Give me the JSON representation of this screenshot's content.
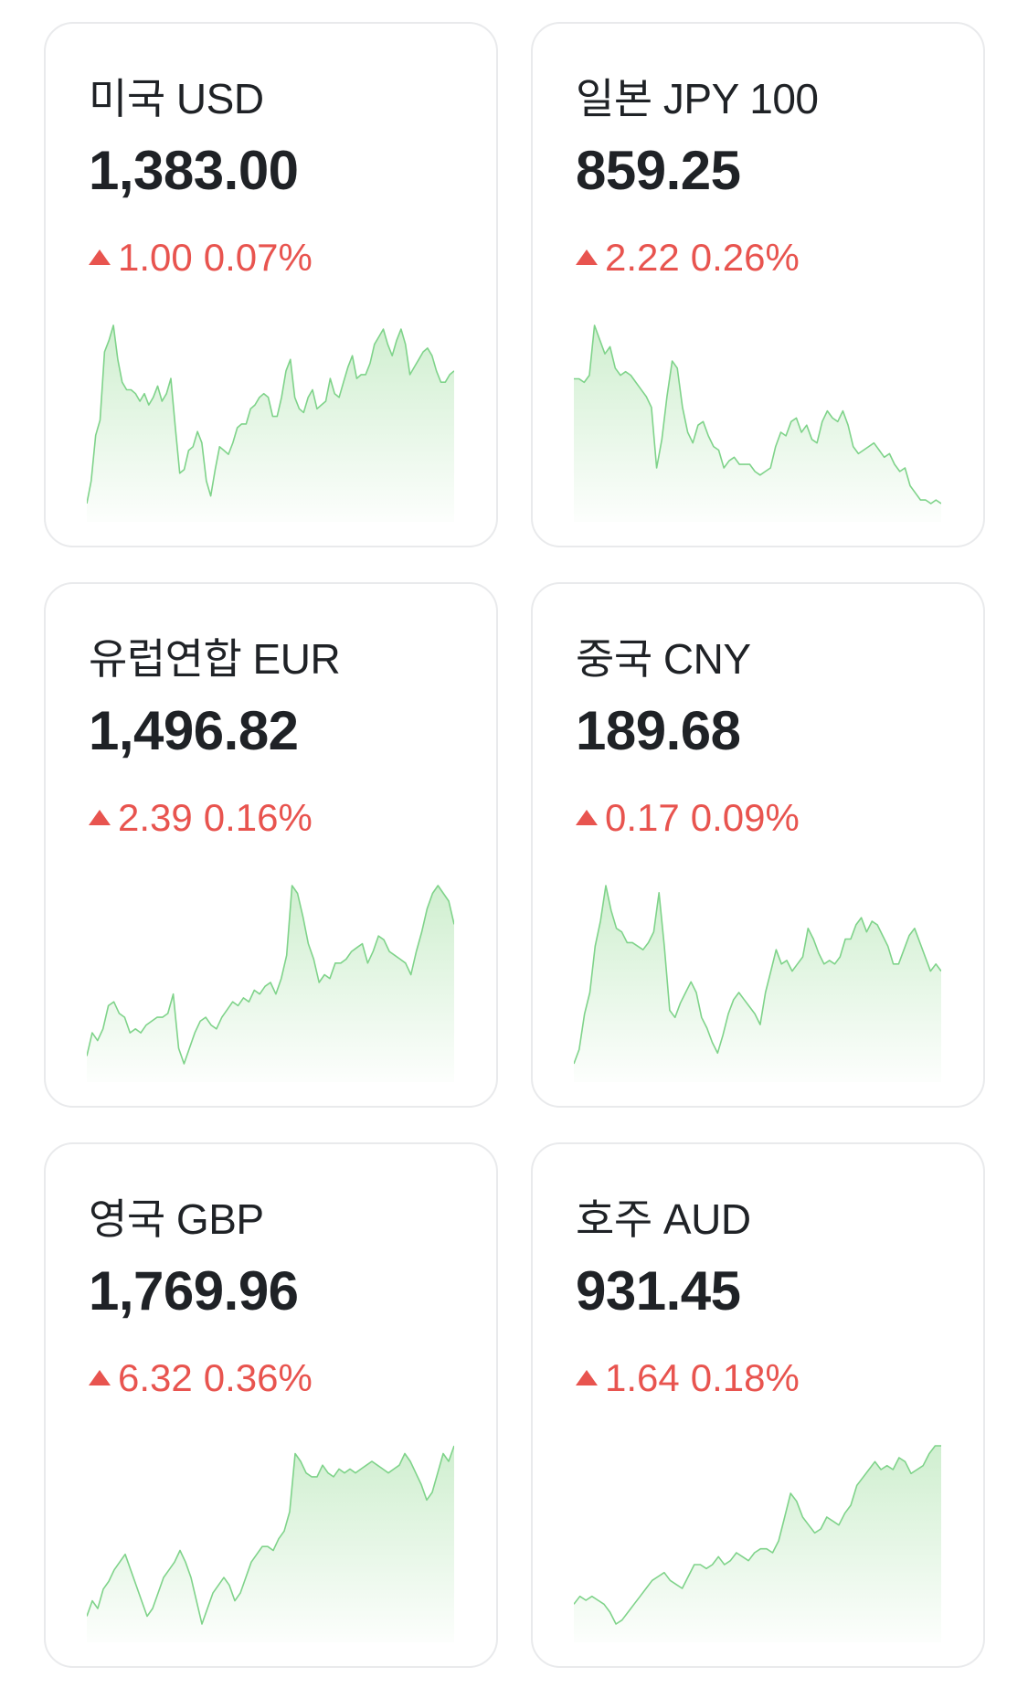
{
  "theme": {
    "rise_color": "#e8544f",
    "spark_line_color": "#7fd38a",
    "spark_fill_color": "#cdeecd"
  },
  "cards": [
    {
      "name": "미국 USD",
      "rate": "1,383.00",
      "change_amount": "1.00",
      "change_percent": "0.07%",
      "direction": "up",
      "spark": [
        58,
        52,
        40,
        36,
        18,
        15,
        11,
        20,
        26,
        28,
        28,
        29,
        31,
        29,
        32,
        30,
        27,
        31,
        29,
        25,
        38,
        50,
        49,
        44,
        43,
        39,
        42,
        52,
        56,
        49,
        43,
        44,
        45,
        42,
        38,
        37,
        37,
        33,
        32,
        30,
        29,
        30,
        35,
        35,
        30,
        23,
        20,
        30,
        33,
        34,
        30,
        28,
        33,
        32,
        31,
        25,
        29,
        30,
        26,
        22,
        19,
        25,
        24,
        24,
        21,
        16,
        14,
        12,
        16,
        19,
        15,
        12,
        16,
        24,
        22,
        20,
        18,
        17,
        19,
        23,
        26,
        26,
        24,
        23
      ]
    },
    {
      "name": "일본 JPY 100",
      "rate": "859.25",
      "change_amount": "2.22",
      "change_percent": "0.26%",
      "direction": "up",
      "spark": [
        25,
        25,
        26,
        24,
        10,
        14,
        18,
        16,
        22,
        24,
        23,
        24,
        26,
        28,
        30,
        33,
        50,
        42,
        30,
        20,
        22,
        33,
        40,
        43,
        38,
        37,
        41,
        44,
        45,
        50,
        48,
        47,
        49,
        49,
        49,
        51,
        52,
        51,
        50,
        44,
        40,
        41,
        37,
        36,
        40,
        38,
        42,
        43,
        37,
        34,
        36,
        37,
        34,
        38,
        44,
        46,
        45,
        44,
        43,
        45,
        47,
        46,
        49,
        51,
        50,
        55,
        57,
        59,
        59,
        60,
        59,
        60
      ]
    },
    {
      "name": "유럽연합 EUR",
      "rate": "1,496.82",
      "change_amount": "2.39",
      "change_percent": "0.16%",
      "direction": "up",
      "spark": [
        54,
        48,
        50,
        47,
        41,
        40,
        43,
        44,
        48,
        47,
        48,
        46,
        45,
        44,
        44,
        43,
        38,
        52,
        56,
        52,
        48,
        45,
        44,
        46,
        47,
        44,
        42,
        40,
        41,
        39,
        40,
        37,
        38,
        36,
        35,
        38,
        34,
        28,
        10,
        12,
        18,
        25,
        29,
        35,
        33,
        34,
        30,
        30,
        29,
        27,
        26,
        25,
        30,
        27,
        23,
        24,
        27,
        28,
        29,
        30,
        33,
        27,
        22,
        16,
        12,
        10,
        12,
        14,
        20
      ]
    },
    {
      "name": "중국 CNY",
      "rate": "189.68",
      "change_amount": "0.17",
      "change_percent": "0.09%",
      "direction": "up",
      "spark": [
        58,
        54,
        44,
        38,
        25,
        18,
        8,
        15,
        20,
        21,
        24,
        24,
        25,
        26,
        24,
        21,
        10,
        25,
        43,
        45,
        41,
        38,
        35,
        38,
        45,
        48,
        52,
        55,
        50,
        44,
        40,
        38,
        40,
        42,
        44,
        47,
        38,
        32,
        26,
        30,
        29,
        32,
        30,
        28,
        20,
        23,
        27,
        30,
        29,
        30,
        28,
        23,
        23,
        19,
        17,
        21,
        18,
        19,
        22,
        25,
        30,
        30,
        26,
        22,
        20,
        24,
        28,
        32,
        30,
        32
      ]
    },
    {
      "name": "영국 GBP",
      "rate": "1,769.96",
      "change_amount": "6.32",
      "change_percent": "0.36%",
      "direction": "up",
      "spark": [
        52,
        48,
        50,
        45,
        43,
        40,
        38,
        36,
        40,
        44,
        48,
        52,
        50,
        46,
        42,
        40,
        38,
        35,
        38,
        42,
        48,
        54,
        50,
        46,
        44,
        42,
        44,
        48,
        46,
        42,
        38,
        36,
        34,
        34,
        35,
        32,
        30,
        25,
        10,
        12,
        15,
        16,
        16,
        13,
        15,
        16,
        14,
        15,
        14,
        15,
        14,
        13,
        12,
        13,
        14,
        15,
        14,
        13,
        10,
        12,
        15,
        18,
        22,
        20,
        15,
        10,
        12,
        8
      ]
    },
    {
      "name": "호주 AUD",
      "rate": "931.45",
      "change_amount": "1.64",
      "change_percent": "0.18%",
      "direction": "up",
      "spark": [
        50,
        48,
        49,
        48,
        49,
        50,
        52,
        55,
        54,
        52,
        50,
        48,
        46,
        44,
        43,
        42,
        44,
        45,
        46,
        43,
        40,
        40,
        41,
        40,
        38,
        40,
        39,
        37,
        38,
        39,
        37,
        36,
        36,
        37,
        34,
        28,
        22,
        24,
        28,
        30,
        32,
        31,
        28,
        29,
        30,
        27,
        25,
        20,
        18,
        16,
        14,
        16,
        15,
        16,
        13,
        14,
        17,
        16,
        15,
        12,
        10,
        10
      ]
    }
  ]
}
